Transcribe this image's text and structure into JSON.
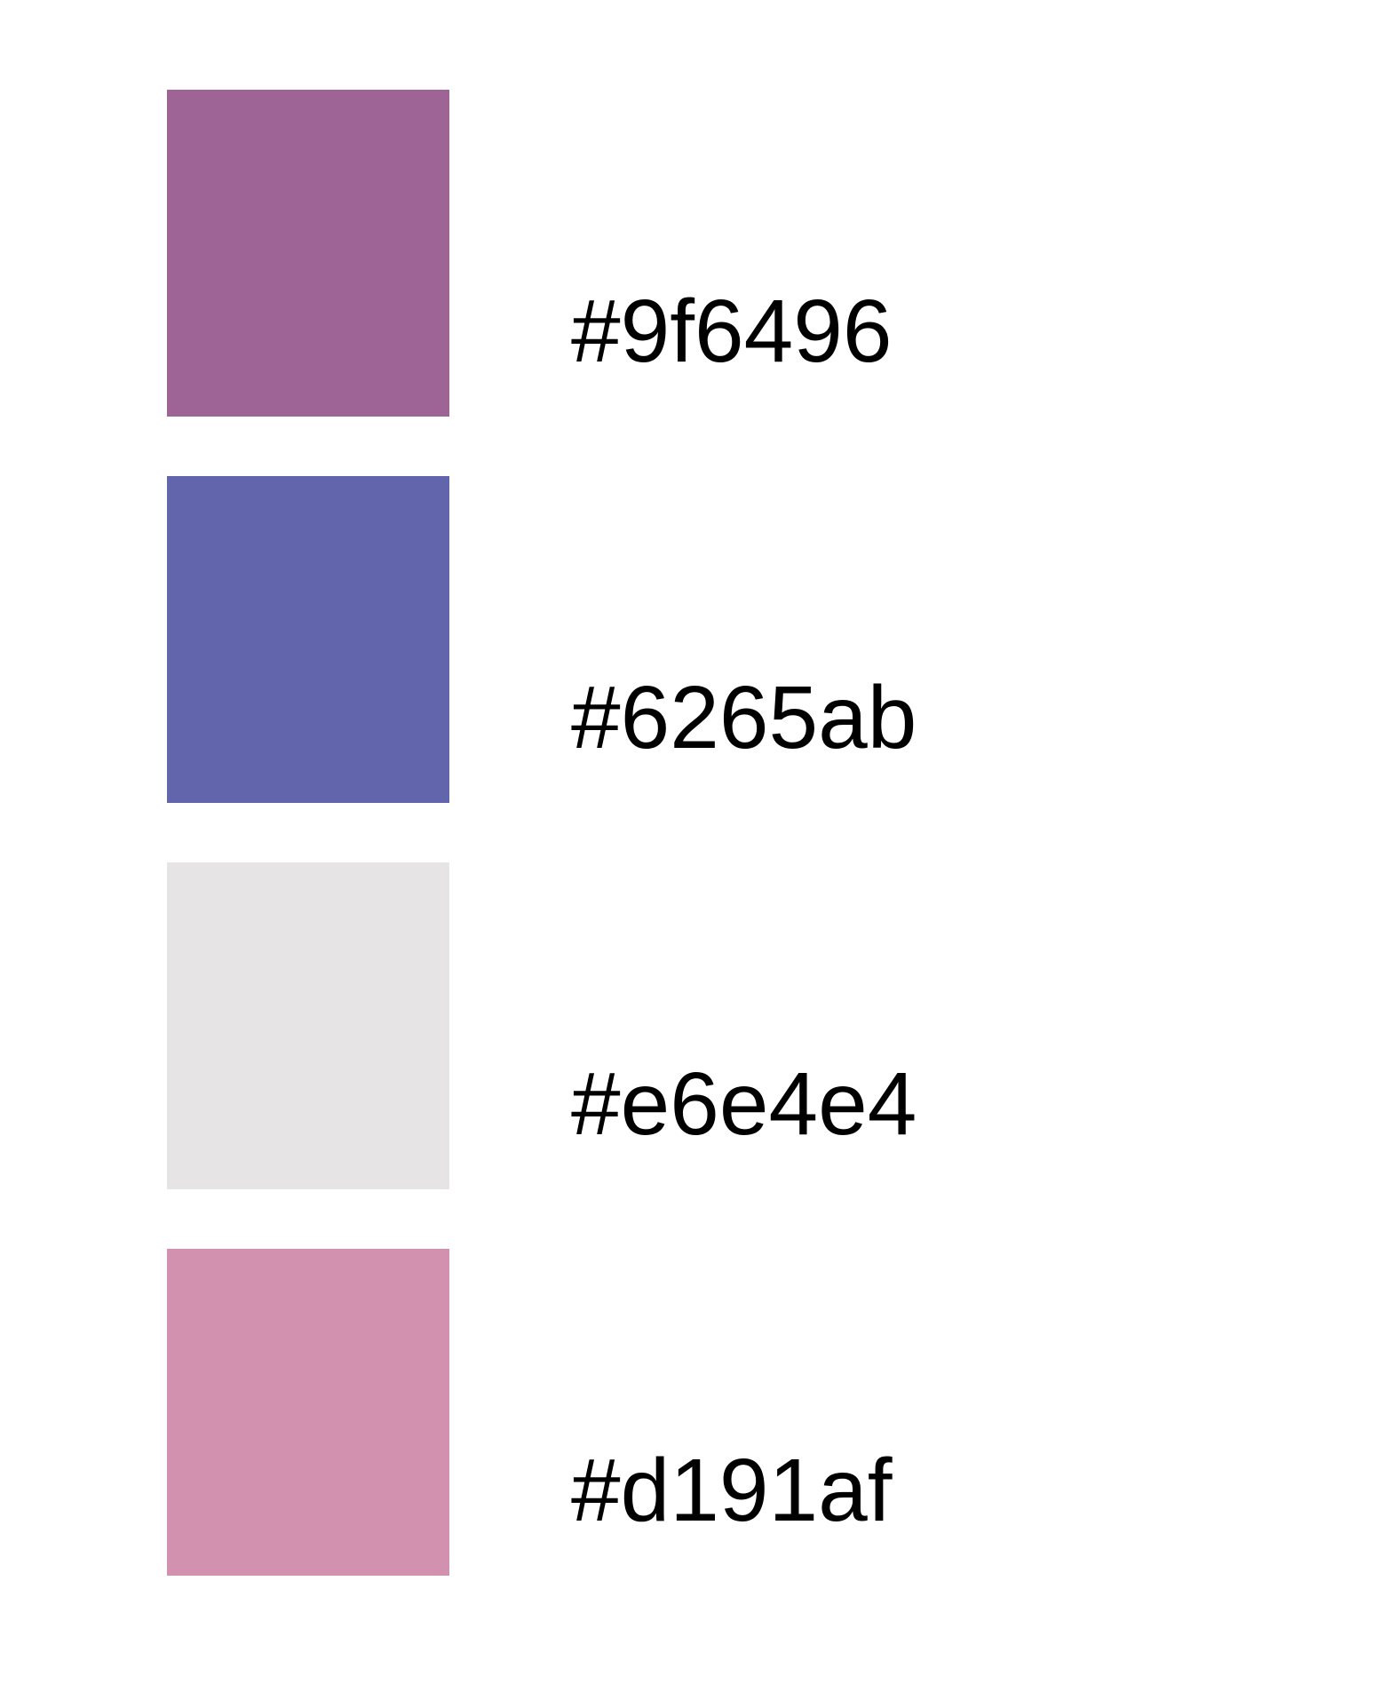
{
  "swatches": [
    {
      "label": "#9f6496",
      "color": "#9f6496"
    },
    {
      "label": "#6265ab",
      "color": "#6265ab"
    },
    {
      "label": "#e6e4e4",
      "color": "#e6e4e4"
    },
    {
      "label": "#d191af",
      "color": "#d191af"
    }
  ]
}
